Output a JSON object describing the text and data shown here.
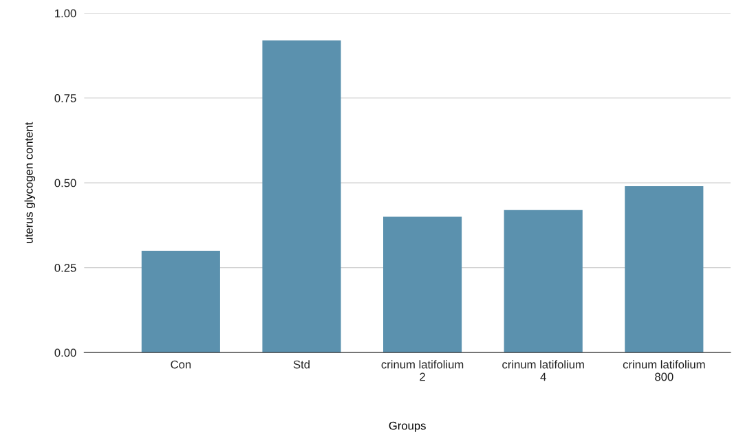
{
  "chart_data": {
    "type": "bar",
    "xlabel": "Groups",
    "ylabel": "uterus glycogen content",
    "categories": [
      "Con",
      "Std",
      "crinum latifolium\n2",
      "crinum latifolium\n4",
      "crinum latifolium\n800"
    ],
    "values": [
      0.3,
      0.92,
      0.4,
      0.42,
      0.49
    ],
    "color": "#5b91ae",
    "ylim": [
      0,
      1
    ],
    "yticks": [
      {
        "value": 0,
        "label": "0.00"
      },
      {
        "value": 0.25,
        "label": "0.25"
      },
      {
        "value": 0.5,
        "label": "0.50"
      },
      {
        "value": 0.75,
        "label": "0.75"
      },
      {
        "value": 1,
        "label": "1.00"
      }
    ],
    "grid": "y"
  }
}
